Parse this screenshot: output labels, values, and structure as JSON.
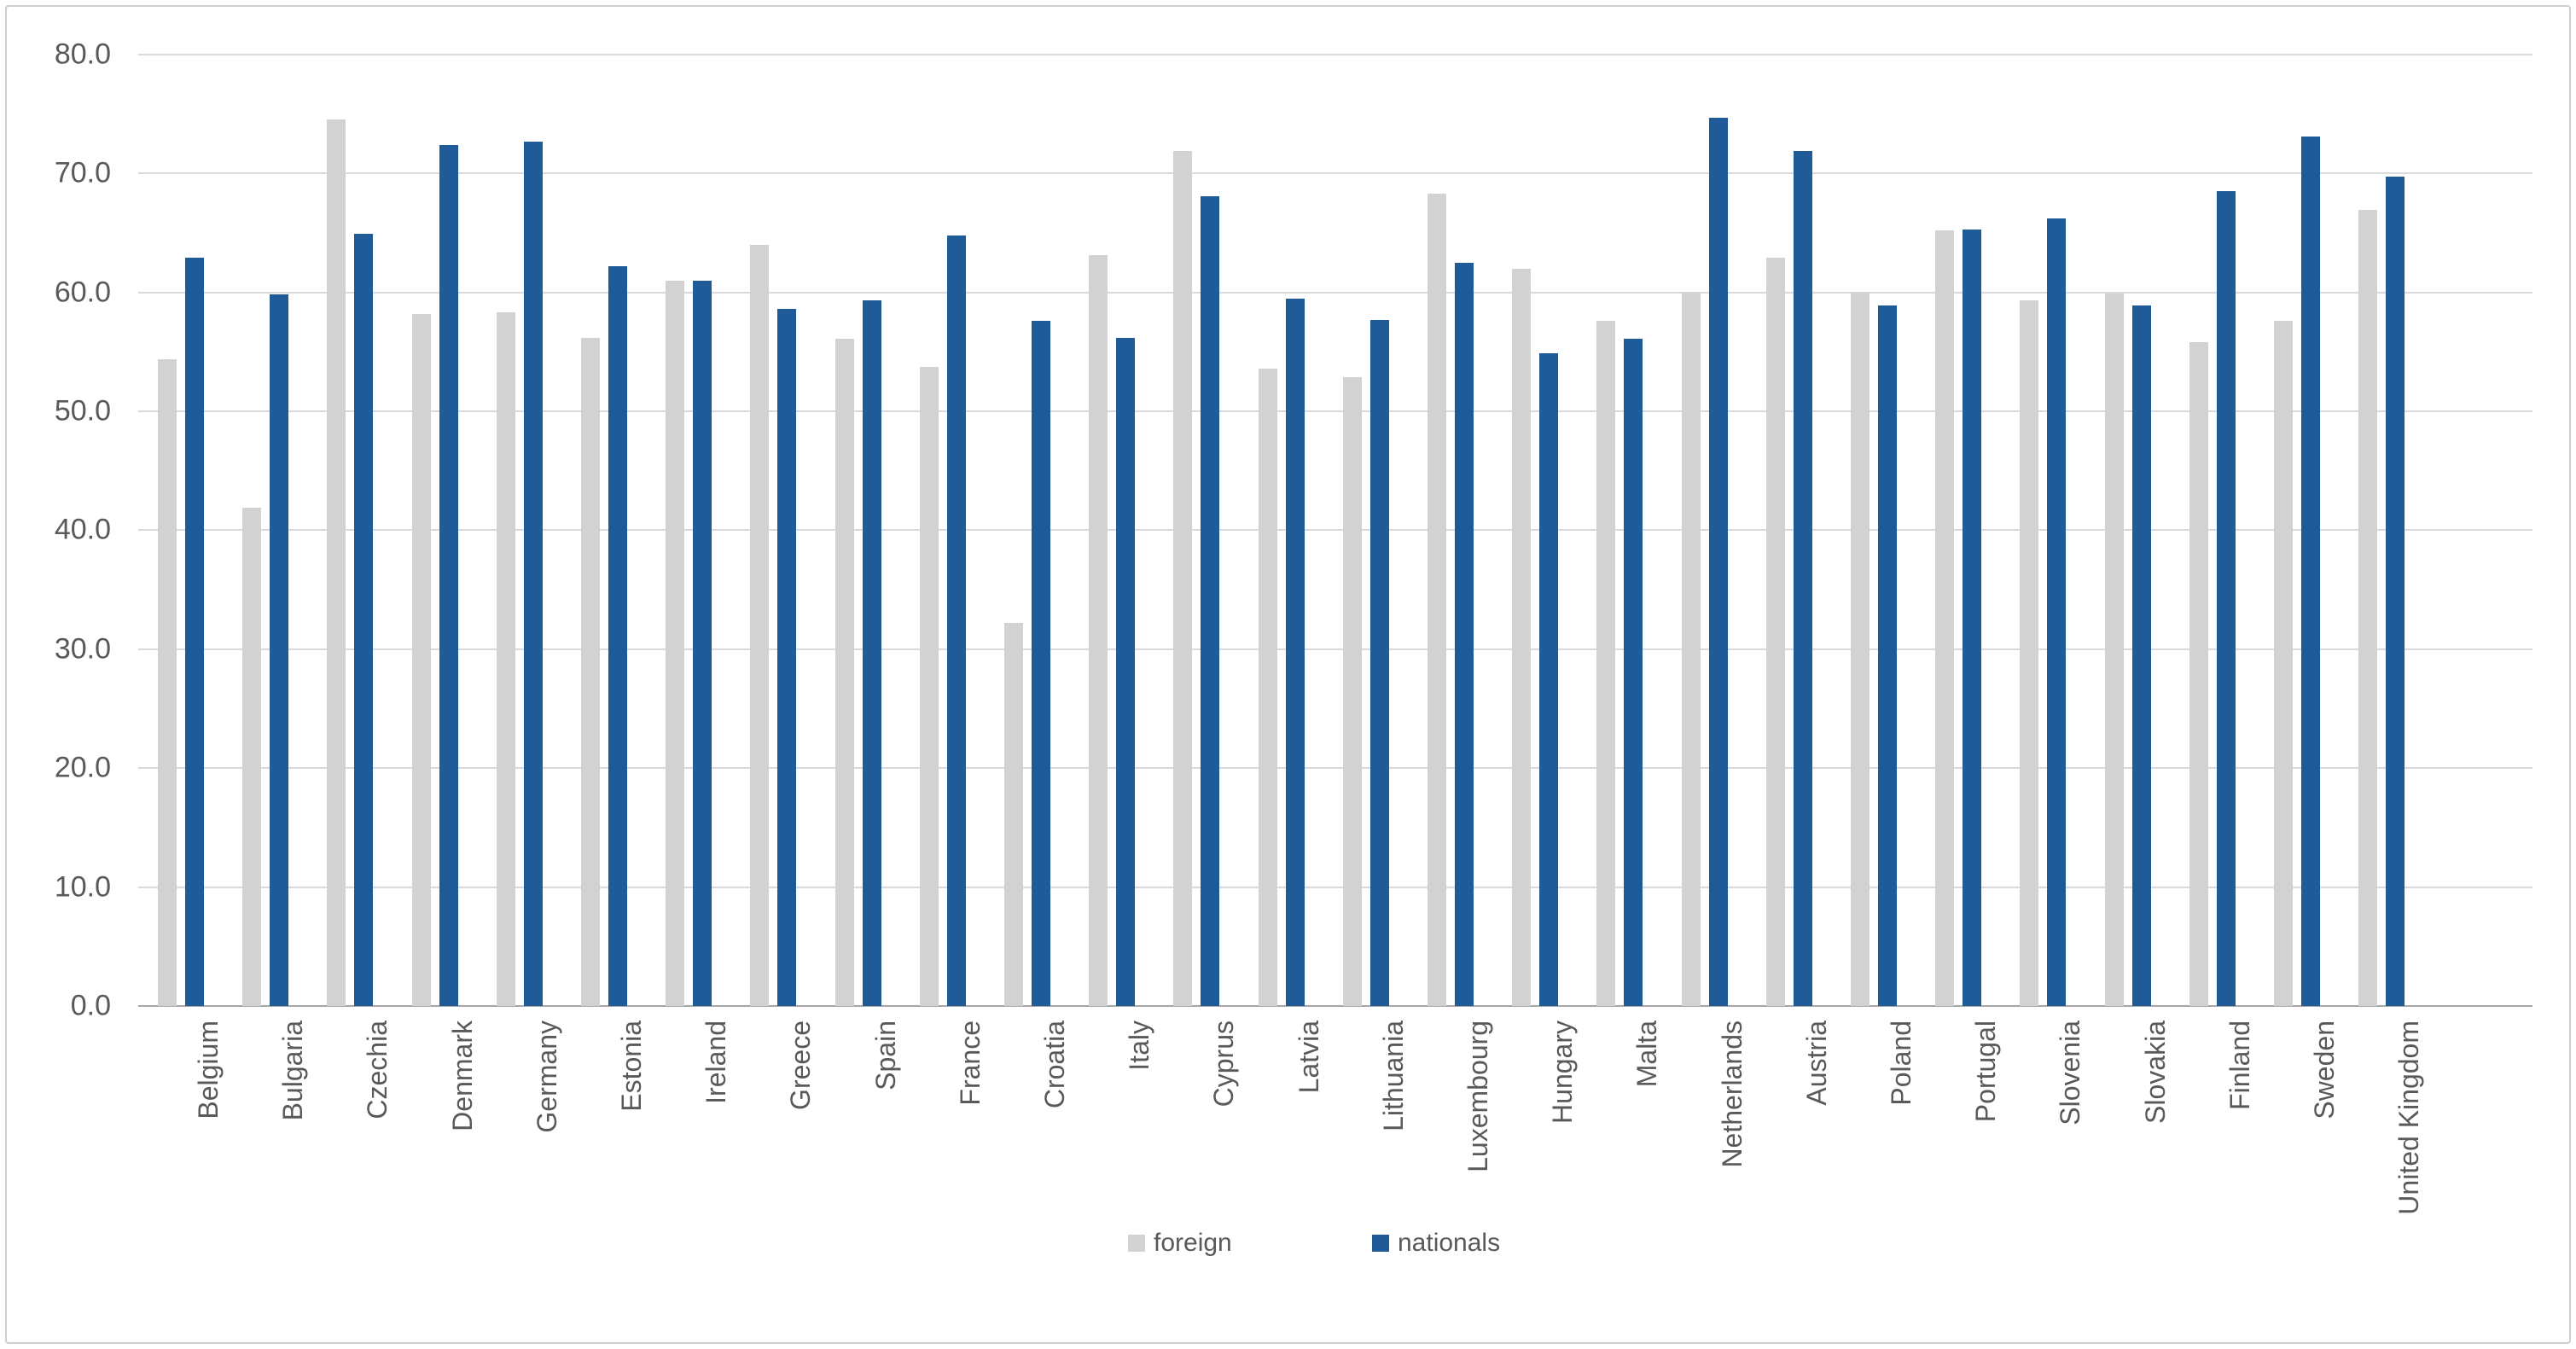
{
  "chart_data": {
    "type": "bar",
    "title": "",
    "xlabel": "",
    "ylabel": "",
    "ylim": [
      0,
      80
    ],
    "ytick_step": 10,
    "ytick_labels": [
      "0.0",
      "10.0",
      "20.0",
      "30.0",
      "40.0",
      "50.0",
      "60.0",
      "70.0",
      "80.0"
    ],
    "grid": true,
    "legend_position": "bottom-center",
    "categories": [
      "Belgium",
      "Bulgaria",
      "Czechia",
      "Denmark",
      "Germany",
      "Estonia",
      "Ireland",
      "Greece",
      "Spain",
      "France",
      "Croatia",
      "Italy",
      "Cyprus",
      "Latvia",
      "Lithuania",
      "Luxembourg",
      "Hungary",
      "Malta",
      "Netherlands",
      "Austria",
      "Poland",
      "Portugal",
      "Slovenia",
      "Slovakia",
      "Finland",
      "Sweden",
      "United Kingdom"
    ],
    "series": [
      {
        "name": "foreign",
        "color": "#d2d2d2",
        "values": [
          54.4,
          41.9,
          74.5,
          58.2,
          58.3,
          56.2,
          61.0,
          64.0,
          56.1,
          53.7,
          32.2,
          63.1,
          71.9,
          53.6,
          52.9,
          68.3,
          62.0,
          57.6,
          60.0,
          62.9,
          60.0,
          65.2,
          59.3,
          59.9,
          55.8,
          57.6,
          66.9
        ]
      },
      {
        "name": "nationals",
        "color": "#1f5b99",
        "values": [
          62.9,
          59.8,
          64.9,
          72.4,
          72.7,
          62.2,
          61.0,
          58.6,
          59.3,
          64.8,
          57.6,
          56.2,
          68.1,
          59.5,
          57.7,
          62.5,
          54.9,
          56.1,
          74.7,
          71.9,
          58.9,
          65.3,
          66.2,
          58.9,
          68.5,
          73.1,
          69.7
        ]
      }
    ]
  },
  "colors": {
    "gridline": "#d9d9d9",
    "axis_line": "#a6a6a6",
    "tick_text": "#595959",
    "panel_border": "#cfcfcf"
  },
  "legend": {
    "foreign_label": "foreign",
    "nationals_label": "nationals"
  }
}
